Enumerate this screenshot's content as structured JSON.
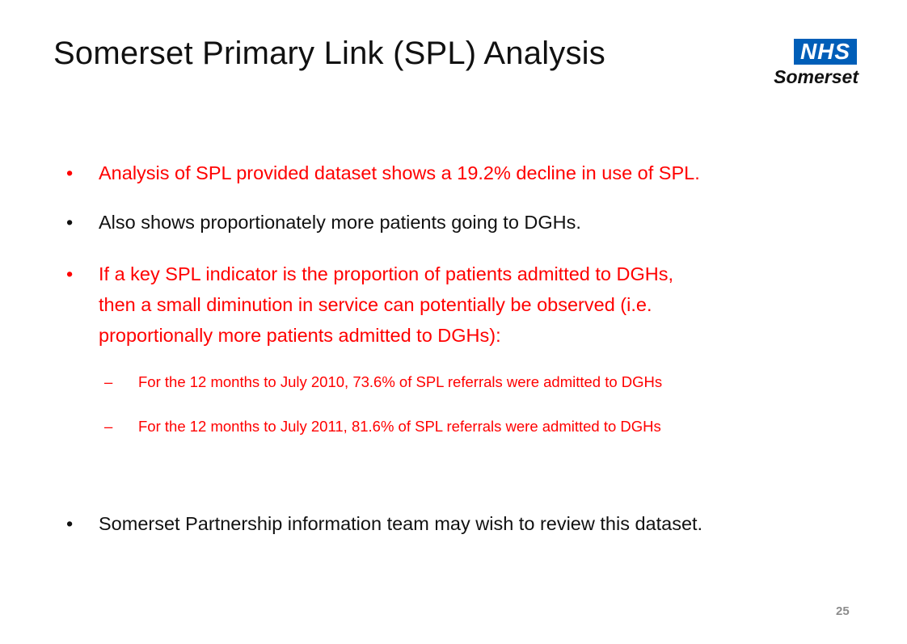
{
  "slide": {
    "title": "Somerset Primary Link (SPL) Analysis",
    "page_number": "25"
  },
  "logo": {
    "nhs": "NHS",
    "organisation": "Somerset"
  },
  "bullets": [
    {
      "text": "Analysis of SPL provided dataset shows a 19.2% decline in use of SPL.",
      "color": "#ff0000"
    },
    {
      "text": "Also shows proportionately more patients going to DGHs.",
      "color": "#111111"
    },
    {
      "lines": [
        "If a key SPL indicator is the proportion of patients admitted to DGHs,",
        "then a small diminution in service can potentially be observed (i.e.",
        "proportionally more patients admitted to DGHs):"
      ],
      "color": "#ff0000",
      "sub_items": [
        "For the 12 months to July 2010, 73.6% of SPL referrals were admitted to DGHs",
        "For the 12 months to July 2011, 81.6% of SPL referrals were admitted to DGHs"
      ]
    },
    {
      "text": "Somerset Partnership information team may wish to review this dataset.",
      "color": "#111111"
    }
  ],
  "glyphs": {
    "bullet": "•",
    "dash": "–"
  }
}
